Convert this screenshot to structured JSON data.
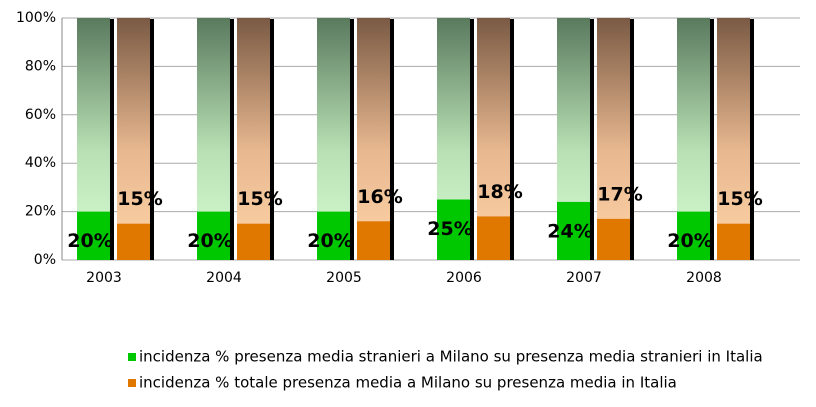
{
  "chart_data": {
    "type": "bar",
    "categories": [
      "2003",
      "2004",
      "2005",
      "2006",
      "2007",
      "2008"
    ],
    "series": [
      {
        "name": "incidenza % presenza media stranieri a Milano su presenza media stranieri in Italia",
        "color": "#00c800",
        "values": [
          20,
          20,
          20,
          25,
          24,
          20
        ],
        "value_labels": [
          "20%",
          "20%",
          "20%",
          "25%",
          "24%",
          "20%"
        ]
      },
      {
        "name": "incidenza % totale presenza media a Milano su presenza media in Italia",
        "color": "#e07800",
        "values": [
          15,
          15,
          16,
          18,
          17,
          15
        ],
        "value_labels": [
          "15%",
          "15%",
          "16%",
          "18%",
          "17%",
          "15%"
        ]
      }
    ],
    "ylim": [
      0,
      100
    ],
    "yticks": [
      {
        "value": 0,
        "label": "0%"
      },
      {
        "value": 20,
        "label": "20%"
      },
      {
        "value": 40,
        "label": "40%"
      },
      {
        "value": 60,
        "label": "60%"
      },
      {
        "value": 80,
        "label": "80%"
      },
      {
        "value": 100,
        "label": "100%"
      }
    ],
    "grid": true,
    "legend": "bottom"
  }
}
